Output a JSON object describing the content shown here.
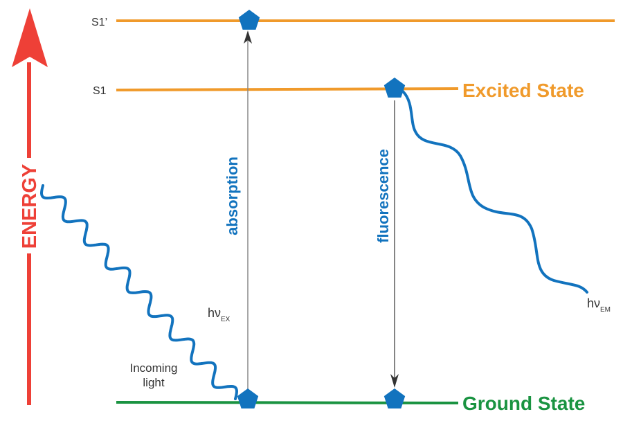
{
  "colors": {
    "energy": "#ee4037",
    "excited": "#f09a2b",
    "ground": "#1a9341",
    "molecule": "#1273be",
    "arrow": "#555555"
  },
  "energy_label": "ENERGY",
  "levels": {
    "s1_prime": "S1’",
    "s1": "S1",
    "excited_state": "Excited State",
    "ground_state": "Ground State"
  },
  "transitions": {
    "absorption": "absorption",
    "fluorescence": "fluorescence"
  },
  "photons": {
    "excitation_h": "hν",
    "excitation_sub": "EX",
    "emission_h": "hν",
    "emission_sub": "EM",
    "incoming_line1": "Incoming",
    "incoming_line2": "light"
  },
  "icons": {
    "molecule": "pentagon"
  }
}
